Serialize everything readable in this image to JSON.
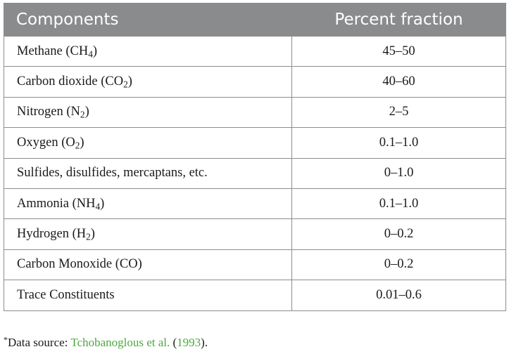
{
  "table": {
    "headers": {
      "components": "Components",
      "percent": "Percent fraction"
    },
    "rows": [
      {
        "name": "Methane (CH",
        "sub": "4",
        "tail": ")",
        "value": "45–50"
      },
      {
        "name": "Carbon dioxide (CO",
        "sub": "2",
        "tail": ")",
        "value": "40–60"
      },
      {
        "name": "Nitrogen (N",
        "sub": "2",
        "tail": ")",
        "value": "2–5"
      },
      {
        "name": "Oxygen (O",
        "sub": "2",
        "tail": ")",
        "value": "0.1–1.0"
      },
      {
        "name": "Sulfides, disulfides, mercaptans, etc.",
        "sub": "",
        "tail": "",
        "value": "0–1.0"
      },
      {
        "name": "Ammonia (NH",
        "sub": "4",
        "tail": ")",
        "value": "0.1–1.0"
      },
      {
        "name": "Hydrogen (H",
        "sub": "2",
        "tail": ")",
        "value": "0–0.2"
      },
      {
        "name": "Carbon Monoxide (CO)",
        "sub": "",
        "tail": "",
        "value": "0–0.2"
      },
      {
        "name": "Trace Constituents",
        "sub": "",
        "tail": "",
        "value": "0.01–0.6"
      }
    ]
  },
  "footnote": {
    "marker": "*",
    "prefix": "Data source: ",
    "author": "Tchobanoglous et al.",
    "open_paren": " (",
    "year": "1993",
    "close": ")."
  },
  "colors": {
    "header_bg": "#8a8b8d",
    "link_green": "#4da93f"
  }
}
